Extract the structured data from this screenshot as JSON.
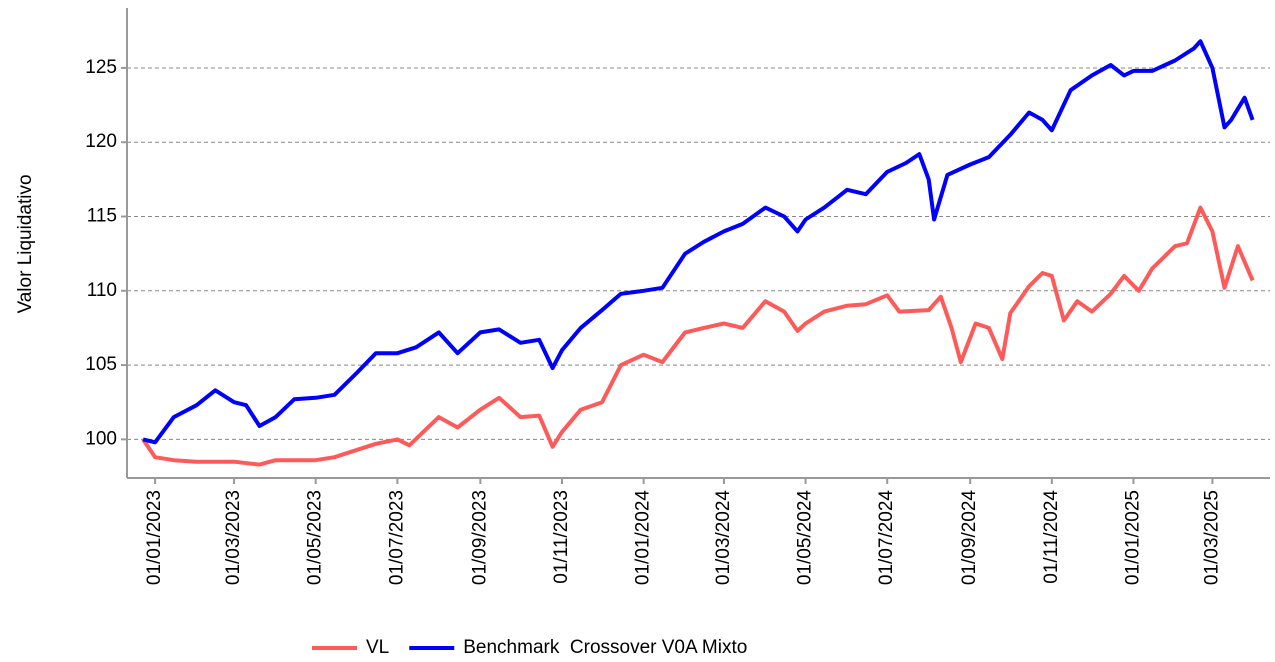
{
  "chart_data": {
    "type": "line",
    "y_label": "Valor Liquidativo",
    "ylim": [
      97.4,
      128.9
    ],
    "yticks": [
      100,
      105,
      110,
      115,
      120,
      125
    ],
    "xlim": [
      "11/12/2022",
      "13/04/2025"
    ],
    "xticks": [
      "01/01/2023",
      "01/03/2023",
      "01/05/2023",
      "01/07/2023",
      "01/09/2023",
      "01/11/2023",
      "01/01/2024",
      "01/03/2024",
      "01/05/2024",
      "01/07/2024",
      "01/09/2024",
      "01/11/2024",
      "01/01/2025",
      "01/03/2025"
    ],
    "grid": true,
    "legend": "bottom",
    "series": [
      {
        "name": "VL",
        "color": "#ff5a5a",
        "x": [
          "23/12/2022",
          "01/01/2023",
          "15/01/2023",
          "01/02/2023",
          "01/03/2023",
          "20/03/2023",
          "01/04/2023",
          "01/05/2023",
          "15/05/2023",
          "01/06/2023",
          "15/06/2023",
          "01/07/2023",
          "10/07/2023",
          "01/08/2023",
          "15/08/2023",
          "01/09/2023",
          "15/09/2023",
          "01/10/2023",
          "15/10/2023",
          "25/10/2023",
          "01/11/2023",
          "15/11/2023",
          "01/12/2023",
          "15/12/2023",
          "01/01/2024",
          "15/01/2024",
          "01/02/2024",
          "15/02/2024",
          "01/03/2024",
          "15/03/2024",
          "01/04/2024",
          "15/04/2024",
          "25/04/2024",
          "01/05/2024",
          "15/05/2024",
          "01/06/2024",
          "15/06/2024",
          "01/07/2024",
          "10/07/2024",
          "01/08/2024",
          "10/08/2024",
          "18/08/2024",
          "25/08/2024",
          "05/09/2024",
          "15/09/2024",
          "25/09/2024",
          "01/10/2024",
          "15/10/2024",
          "25/10/2024",
          "01/11/2024",
          "10/11/2024",
          "20/11/2024",
          "01/12/2024",
          "15/12/2024",
          "25/12/2024",
          "05/01/2025",
          "15/01/2025",
          "01/02/2025",
          "10/02/2025",
          "20/02/2025",
          "01/03/2025",
          "10/03/2025",
          "20/03/2025",
          "31/03/2025"
        ],
        "values": [
          100,
          98.8,
          98.6,
          98.5,
          98.5,
          98.3,
          98.6,
          98.6,
          98.8,
          99.3,
          99.7,
          100.0,
          99.6,
          101.5,
          100.8,
          102.0,
          102.8,
          101.5,
          101.6,
          99.5,
          100.5,
          102.0,
          102.5,
          105.0,
          105.7,
          105.2,
          107.2,
          107.5,
          107.8,
          107.5,
          109.3,
          108.6,
          107.3,
          107.8,
          108.6,
          109.0,
          109.1,
          109.7,
          108.6,
          108.7,
          109.6,
          107.5,
          105.2,
          107.8,
          107.5,
          105.4,
          108.5,
          110.3,
          111.2,
          111.0,
          108.0,
          109.3,
          108.6,
          109.8,
          111.0,
          110.0,
          111.5,
          113.0,
          113.2,
          115.6,
          114.0,
          110.2,
          113.0,
          110.7
        ]
      },
      {
        "name": "Benchmark  Crossover V0A Mixto",
        "color": "#0000ff",
        "x": [
          "23/12/2022",
          "01/01/2023",
          "15/01/2023",
          "01/02/2023",
          "15/02/2023",
          "01/03/2023",
          "10/03/2023",
          "20/03/2023",
          "01/04/2023",
          "15/04/2023",
          "01/05/2023",
          "15/05/2023",
          "01/06/2023",
          "15/06/2023",
          "01/07/2023",
          "15/07/2023",
          "01/08/2023",
          "15/08/2023",
          "01/09/2023",
          "15/09/2023",
          "01/10/2023",
          "15/10/2023",
          "25/10/2023",
          "01/11/2023",
          "15/11/2023",
          "01/12/2023",
          "15/12/2023",
          "01/01/2024",
          "15/01/2024",
          "01/02/2024",
          "15/02/2024",
          "01/03/2024",
          "15/03/2024",
          "01/04/2024",
          "15/04/2024",
          "25/04/2024",
          "01/05/2024",
          "15/05/2024",
          "01/06/2024",
          "15/06/2024",
          "01/07/2024",
          "15/07/2024",
          "25/07/2024",
          "01/08/2024",
          "05/08/2024",
          "15/08/2024",
          "01/09/2024",
          "15/09/2024",
          "01/10/2024",
          "15/10/2024",
          "25/10/2024",
          "01/11/2024",
          "15/11/2024",
          "01/12/2024",
          "15/12/2024",
          "25/12/2024",
          "01/01/2025",
          "15/01/2025",
          "01/02/2025",
          "15/02/2025",
          "20/02/2025",
          "01/03/2025",
          "10/03/2025",
          "15/03/2025",
          "25/03/2025",
          "31/03/2025"
        ],
        "values": [
          100,
          99.8,
          101.5,
          102.3,
          103.3,
          102.5,
          102.3,
          100.9,
          101.5,
          102.7,
          102.8,
          103.0,
          104.5,
          105.8,
          105.8,
          106.2,
          107.2,
          105.8,
          107.2,
          107.4,
          106.5,
          106.7,
          104.8,
          106.0,
          107.5,
          108.7,
          109.8,
          110.0,
          110.2,
          112.5,
          113.3,
          114.0,
          114.5,
          115.6,
          115.0,
          114.0,
          114.8,
          115.6,
          116.8,
          116.5,
          118.0,
          118.6,
          119.2,
          117.5,
          114.8,
          117.8,
          118.5,
          119.0,
          120.5,
          122.0,
          121.5,
          120.8,
          123.5,
          124.5,
          125.2,
          124.5,
          124.8,
          124.8,
          125.5,
          126.3,
          126.8,
          125.0,
          121.0,
          121.5,
          123.0,
          121.5
        ]
      }
    ]
  }
}
